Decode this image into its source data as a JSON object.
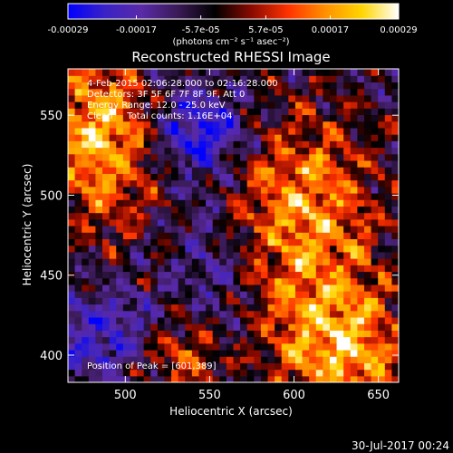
{
  "chart_data": {
    "type": "heatmap",
    "title": "Reconstructed RHESSI Image",
    "xlabel": "Heliocentric X (arcsec)",
    "ylabel": "Heliocentric Y (arcsec)",
    "xlim": [
      466,
      662
    ],
    "ylim": [
      383,
      579
    ],
    "x_ticks": [
      500,
      550,
      600,
      650
    ],
    "y_ticks": [
      400,
      450,
      500,
      550
    ],
    "colorbar": {
      "range": [
        -0.00029,
        0.00029
      ],
      "tick_values": [
        -0.00029,
        -0.00017,
        -5.7e-05,
        5.7e-05,
        0.00017,
        0.00029
      ],
      "tick_labels": [
        "-0.00029",
        "-0.00017",
        "-5.7e-05",
        "5.7e-05",
        "0.00017",
        "0.00029"
      ],
      "units_label": "(photons cm⁻² s⁻¹ asec⁻²)",
      "stops": [
        "#0000ff",
        "#3a22c6",
        "#5a2aa8",
        "#3a1a55",
        "#000000",
        "#8a0a00",
        "#ff3300",
        "#ff9000",
        "#ffd500",
        "#ffffff"
      ]
    },
    "annotations": [
      "4-Feb-2015 02:06:28.000 to 02:16:28.000",
      "Detectors: 3F 5F 6F 7F 8F 9F, Att 0",
      "Energy Range: 12.0 - 25.0 keV",
      "Clean     Total counts: 1.16E+04"
    ],
    "peak_label": "Position of Peak = [601,389]",
    "peak": [
      601,
      389
    ],
    "grid": false
  },
  "footer": {
    "timestamp": "30-Jul-2017 00:24"
  }
}
